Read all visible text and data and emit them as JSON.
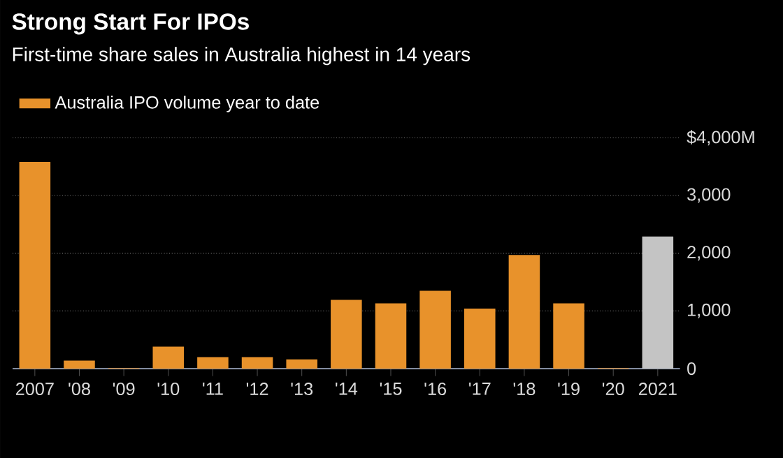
{
  "chart_data": {
    "type": "bar",
    "title": "Strong Start For IPOs",
    "subtitle": "First-time share sales in Australia highest in 14 years",
    "categories": [
      "2007",
      "'08",
      "'09",
      "'10",
      "'11",
      "'12",
      "'13",
      "'14",
      "'15",
      "'16",
      "'17",
      "'18",
      "'19",
      "'20",
      "2021"
    ],
    "series": [
      {
        "name": "Australia IPO volume year to date",
        "color": "#e8922b",
        "colors": [
          "#e8922b",
          "#e8922b",
          "#e8922b",
          "#e8922b",
          "#e8922b",
          "#e8922b",
          "#e8922b",
          "#e8922b",
          "#e8922b",
          "#e8922b",
          "#e8922b",
          "#e8922b",
          "#e8922b",
          "#e8922b",
          "#c4c4c4"
        ],
        "values": [
          3580,
          140,
          10,
          380,
          200,
          200,
          160,
          1190,
          1130,
          1350,
          1040,
          1970,
          1130,
          10,
          2290
        ]
      }
    ],
    "ylim": [
      0,
      4000
    ],
    "yticks": [
      0,
      {
        "value": 1000,
        "label": "1,000"
      },
      {
        "value": 2000,
        "label": "2,000"
      },
      {
        "value": 3000,
        "label": "3,000"
      },
      {
        "value": 4000,
        "label": "$4,000M"
      }
    ],
    "grid": "y",
    "legend": "top left"
  }
}
